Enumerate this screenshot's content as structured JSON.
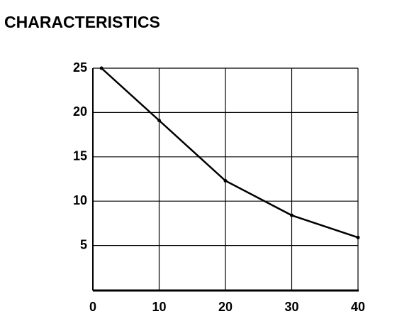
{
  "chart_data": {
    "type": "line",
    "title": "CHARACTERISTICS",
    "x": [
      1.3,
      10,
      20,
      30,
      40
    ],
    "series": [
      {
        "color": "#000000",
        "values": [
          25,
          19.1,
          12.3,
          8.4,
          5.9
        ]
      }
    ],
    "xlim": [
      0,
      40
    ],
    "xticks": [
      0,
      10,
      20,
      30,
      40
    ],
    "ylim": [
      0,
      25
    ],
    "yticks": [
      5,
      10,
      15,
      20,
      25
    ],
    "grid": true
  }
}
